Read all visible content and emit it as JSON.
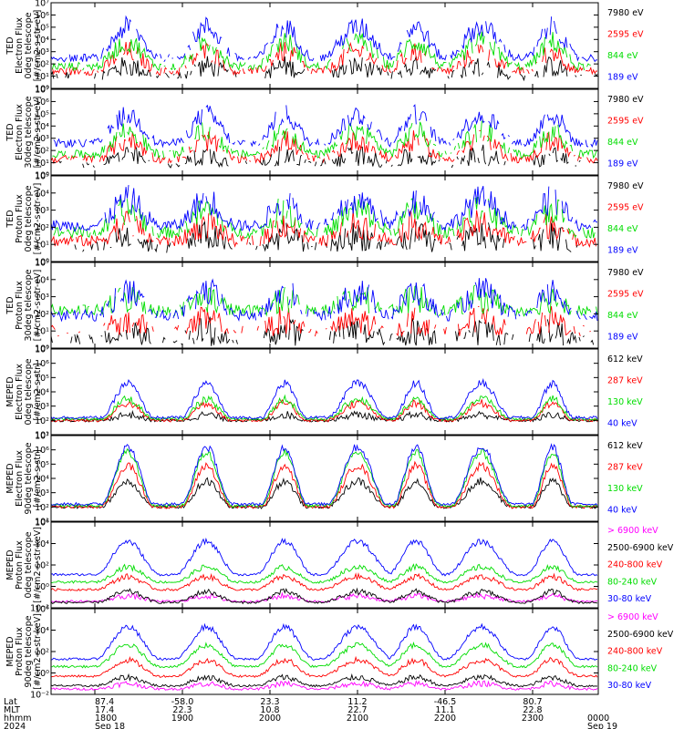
{
  "chart_data": {
    "type": "line",
    "x_range_hhmm": [
      "1730",
      "2345"
    ],
    "grid": false,
    "legend_placement": "right",
    "panels": [
      {
        "ylabel": [
          "TED",
          "Electron Flux",
          "0deg telescope",
          "[#/cm2-s-str-eV]"
        ],
        "log_ylim": [
          0,
          7
        ],
        "tick_labels": [
          "10⁰",
          "10¹",
          "10²",
          "10³",
          "10⁴",
          "10⁵",
          "10⁶",
          "10⁷"
        ],
        "series": [
          {
            "name": "7980 eV",
            "color": "#000000",
            "base": 1.0,
            "peak": 1.8
          },
          {
            "name": "2595 eV",
            "color": "#ff0000",
            "base": 1.4,
            "peak": 3.0
          },
          {
            "name": "844 eV",
            "color": "#00dd00",
            "base": 1.8,
            "peak": 3.8
          },
          {
            "name": "189 eV",
            "color": "#0000ff",
            "base": 2.5,
            "peak": 5.0
          }
        ]
      },
      {
        "ylabel": [
          "TED",
          "Electron Flux",
          "30deg telescope",
          "[#/cm2-s-str-eV]"
        ],
        "log_ylim": [
          0,
          7
        ],
        "tick_labels": [
          "10⁰",
          "10¹",
          "10²",
          "10³",
          "10⁴",
          "10⁵",
          "10⁶",
          "10⁷"
        ],
        "series": [
          {
            "name": "7980 eV",
            "color": "#000000",
            "base": 0.9,
            "peak": 1.6
          },
          {
            "name": "2595 eV",
            "color": "#ff0000",
            "base": 1.3,
            "peak": 2.8
          },
          {
            "name": "844 eV",
            "color": "#00dd00",
            "base": 1.7,
            "peak": 3.6
          },
          {
            "name": "189 eV",
            "color": "#0000ff",
            "base": 2.6,
            "peak": 4.9
          }
        ]
      },
      {
        "ylabel": [
          "TED",
          "Proton Flux",
          "0deg telescope",
          "[#/cm2-s-str-eV]"
        ],
        "log_ylim": [
          0,
          5
        ],
        "tick_labels": [
          "10⁰",
          "10¹",
          "10²",
          "10³",
          "10⁴",
          "10⁵"
        ],
        "series": [
          {
            "name": "7980 eV",
            "color": "#000000",
            "base": 0.8,
            "peak": 1.5
          },
          {
            "name": "2595 eV",
            "color": "#ff0000",
            "base": 1.2,
            "peak": 2.2
          },
          {
            "name": "844 eV",
            "color": "#00dd00",
            "base": 1.7,
            "peak": 3.0
          },
          {
            "name": "189 eV",
            "color": "#0000ff",
            "base": 2.1,
            "peak": 3.6
          }
        ]
      },
      {
        "ylabel": [
          "TED",
          "Proton Flux",
          "30deg telescope",
          "[#/cm2-s-str-eV]"
        ],
        "log_ylim": [
          0,
          5
        ],
        "tick_labels": [
          "10⁰",
          "10¹",
          "10²",
          "10³",
          "10⁴",
          "10⁵"
        ],
        "series": [
          {
            "name": "7980 eV",
            "color": "#000000",
            "base": 0.5,
            "peak": 1.0
          },
          {
            "name": "2595 eV",
            "color": "#ff0000",
            "base": 1.0,
            "peak": 1.6
          },
          {
            "name": "844 eV",
            "color": "#00dd00",
            "base": 2.2,
            "peak": 2.9
          },
          {
            "name": "189 eV",
            "color": "#0000ff",
            "base": 1.9,
            "peak": 3.3
          }
        ]
      },
      {
        "ylabel": [
          "MEPED",
          "Electron Flux",
          "0deg telescope",
          "[#/cm2-s-str]"
        ],
        "log_ylim": [
          1,
          7
        ],
        "tick_labels": [
          "10¹",
          "10²",
          "10³",
          "10⁴",
          "10⁵",
          "10⁶",
          "10⁷"
        ],
        "series": [
          {
            "name": "612 keV",
            "color": "#000000",
            "base": 2.0,
            "peak": 2.4
          },
          {
            "name": "287 keV",
            "color": "#ff0000",
            "base": 2.0,
            "peak": 3.2
          },
          {
            "name": "130 keV",
            "color": "#00dd00",
            "base": 2.1,
            "peak": 3.5
          },
          {
            "name": "40 keV",
            "color": "#0000ff",
            "base": 2.2,
            "peak": 4.6
          }
        ]
      },
      {
        "ylabel": [
          "MEPED",
          "Electron Flux",
          "90deg telescope",
          "[#/cm2-s-str]"
        ],
        "log_ylim": [
          1,
          7
        ],
        "tick_labels": [
          "10¹",
          "10²",
          "10³",
          "10⁴",
          "10⁵",
          "10⁶",
          "10⁷"
        ],
        "series": [
          {
            "name": "612 keV",
            "color": "#000000",
            "base": 2.0,
            "peak": 3.8
          },
          {
            "name": "287 keV",
            "color": "#ff0000",
            "base": 2.0,
            "peak": 4.9
          },
          {
            "name": "130 keV",
            "color": "#00dd00",
            "base": 2.1,
            "peak": 5.8
          },
          {
            "name": "40 keV",
            "color": "#0000ff",
            "base": 2.2,
            "peak": 6.2
          }
        ]
      },
      {
        "ylabel": [
          "MEPED",
          "Proton Flux",
          "0deg telescope",
          "[#/cm2-s-str-keV]"
        ],
        "log_ylim": [
          -2,
          6
        ],
        "tick_labels": [
          "10⁻²",
          "10⁰",
          "10²",
          "10⁴",
          "10⁶"
        ],
        "tick_values": [
          -2,
          0,
          2,
          4,
          6
        ],
        "series": [
          {
            "name": "> 6900 keV",
            "color": "#ff00ff",
            "base": -1.4,
            "peak": -0.9
          },
          {
            "name": "2500-6900 keV",
            "color": "#000000",
            "base": -1.5,
            "peak": -0.5
          },
          {
            "name": "240-800 keV",
            "color": "#ff0000",
            "base": -0.3,
            "peak": 0.9
          },
          {
            "name": "80-240 keV",
            "color": "#00dd00",
            "base": 0.4,
            "peak": 1.8
          },
          {
            "name": "30-80 keV",
            "color": "#0000ff",
            "base": 1.1,
            "peak": 4.2
          }
        ]
      },
      {
        "ylabel": [
          "MEPED",
          "Proton Flux",
          "90deg telescope",
          "[#/cm2-s-str-keV]"
        ],
        "log_ylim": [
          -2,
          6
        ],
        "tick_labels": [
          "10⁻²",
          "10⁰",
          "10²",
          "10⁴",
          "10⁶"
        ],
        "tick_values": [
          -2,
          0,
          2,
          4,
          6
        ],
        "series": [
          {
            "name": "> 6900 keV",
            "color": "#ff00ff",
            "base": -1.5,
            "peak": -1.0
          },
          {
            "name": "2500-6900 keV",
            "color": "#000000",
            "base": -1.2,
            "peak": -0.4
          },
          {
            "name": "240-800 keV",
            "color": "#ff0000",
            "base": -0.3,
            "peak": 1.2
          },
          {
            "name": "80-240 keV",
            "color": "#00dd00",
            "base": 0.6,
            "peak": 2.6
          },
          {
            "name": "30-80 keV",
            "color": "#0000ff",
            "base": 1.3,
            "peak": 4.3
          }
        ]
      }
    ],
    "passes": [
      {
        "start": 1810,
        "end": 1835
      },
      {
        "start": 1905,
        "end": 1928
      },
      {
        "start": 2000,
        "end": 2020
      },
      {
        "start": 2045,
        "end": 2115
      },
      {
        "start": 2130,
        "end": 2150
      },
      {
        "start": 2210,
        "end": 2240
      },
      {
        "start": 2305,
        "end": 2322
      }
    ],
    "x_axis": {
      "row_labels": [
        "Lat",
        "MLT",
        "hhmm",
        "2024"
      ],
      "ticks": [
        {
          "time": "1800",
          "lat": "87.4",
          "mlt": "17.4",
          "date": "Sep 18"
        },
        {
          "time": "1900",
          "lat": "-58.0",
          "mlt": "22.3",
          "date": ""
        },
        {
          "time": "2000",
          "lat": "23.3",
          "mlt": "10.8",
          "date": ""
        },
        {
          "time": "2100",
          "lat": "11.2",
          "mlt": "22.7",
          "date": ""
        },
        {
          "time": "2200",
          "lat": "-46.5",
          "mlt": "11.1",
          "date": ""
        },
        {
          "time": "2300",
          "lat": "80.7",
          "mlt": "22.8",
          "date": ""
        },
        {
          "time": "0000",
          "lat": "",
          "mlt": "",
          "date": "Sep 19"
        }
      ]
    }
  }
}
